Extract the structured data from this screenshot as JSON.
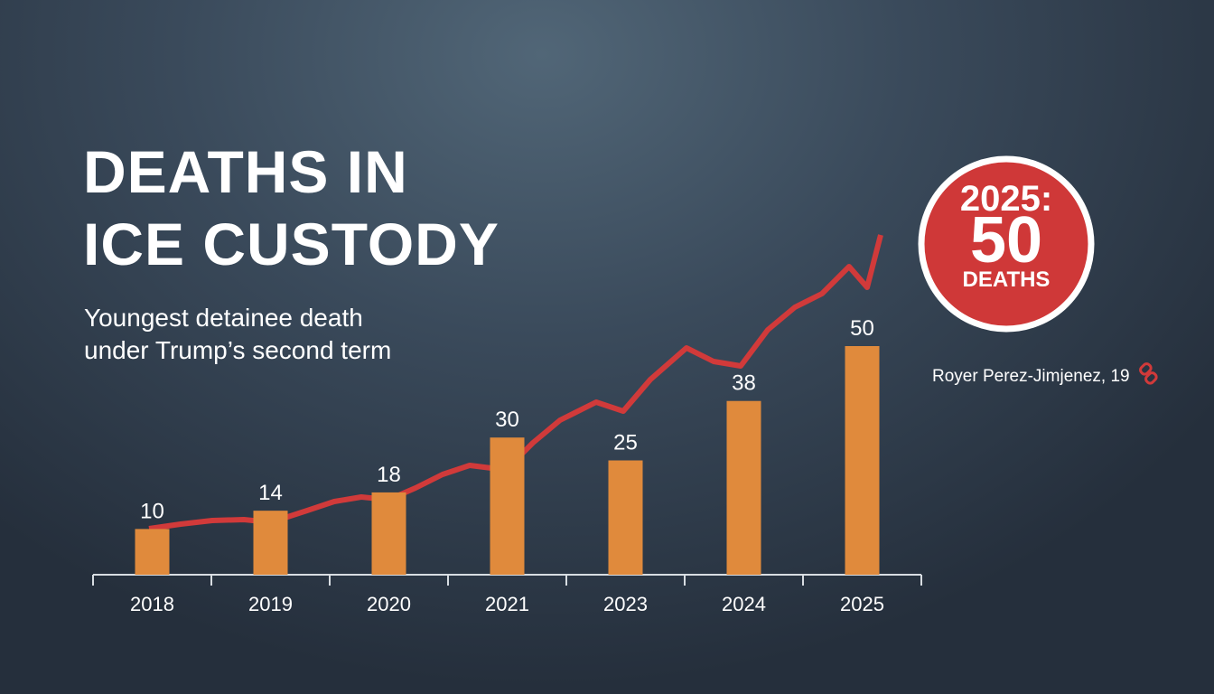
{
  "chart_data": {
    "type": "bar",
    "title": [
      "DEATHS IN",
      "ICE CUSTODY"
    ],
    "subtitle": [
      "Youngest detainee death",
      "under Trump’s second term"
    ],
    "categories": [
      "2018",
      "2019",
      "2020",
      "2021",
      "2023",
      "2024",
      "2025"
    ],
    "values": [
      10,
      14,
      18,
      30,
      25,
      38,
      50
    ],
    "color": "#e08a3c",
    "callout": {
      "year": "2025:",
      "value": "50",
      "unit": "DEATHS"
    },
    "annotation": "Royer Perez-Jimjenez, 19"
  }
}
